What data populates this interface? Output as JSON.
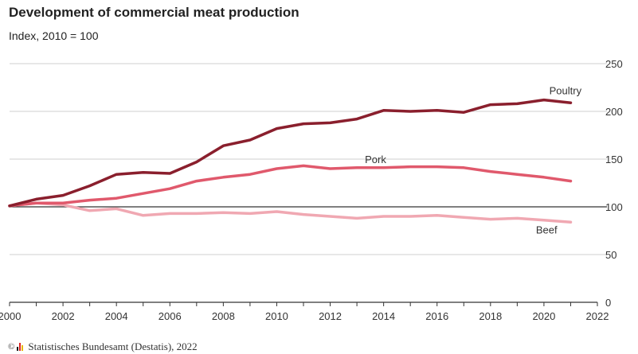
{
  "title": "Development of commercial meat production",
  "subtitle": "Index, 2010 = 100",
  "footer": {
    "copyright": "©",
    "source": "Statistisches Bundesamt (Destatis), 2022"
  },
  "chart_data": {
    "type": "line",
    "xlim": [
      2000,
      2022
    ],
    "ylim": [
      0,
      250
    ],
    "x_ticks": [
      2000,
      2002,
      2004,
      2006,
      2008,
      2010,
      2012,
      2014,
      2016,
      2018,
      2020,
      2022
    ],
    "y_ticks": [
      0,
      50,
      100,
      150,
      200,
      250
    ],
    "grid": true,
    "reference_line": 100,
    "x": [
      2000,
      2001,
      2002,
      2003,
      2004,
      2005,
      2006,
      2007,
      2008,
      2009,
      2010,
      2011,
      2012,
      2013,
      2014,
      2015,
      2016,
      2017,
      2018,
      2019,
      2020,
      2021
    ],
    "series": [
      {
        "name": "Poultry",
        "color": "#8a1f2d",
        "values": [
          101,
          108,
          112,
          122,
          134,
          136,
          135,
          147,
          164,
          170,
          182,
          187,
          188,
          192,
          201,
          200,
          201,
          199,
          207,
          208,
          212,
          209
        ]
      },
      {
        "name": "Pork",
        "color": "#e0596c",
        "values": [
          101,
          104,
          104,
          107,
          109,
          114,
          119,
          127,
          131,
          134,
          140,
          143,
          140,
          141,
          141,
          142,
          142,
          141,
          137,
          134,
          131,
          127
        ]
      },
      {
        "name": "Beef",
        "color": "#f0a8b2",
        "values": [
          101,
          104,
          102,
          96,
          98,
          91,
          93,
          93,
          94,
          93,
          95,
          92,
          90,
          88,
          90,
          90,
          91,
          89,
          87,
          88,
          86,
          84
        ]
      }
    ]
  }
}
